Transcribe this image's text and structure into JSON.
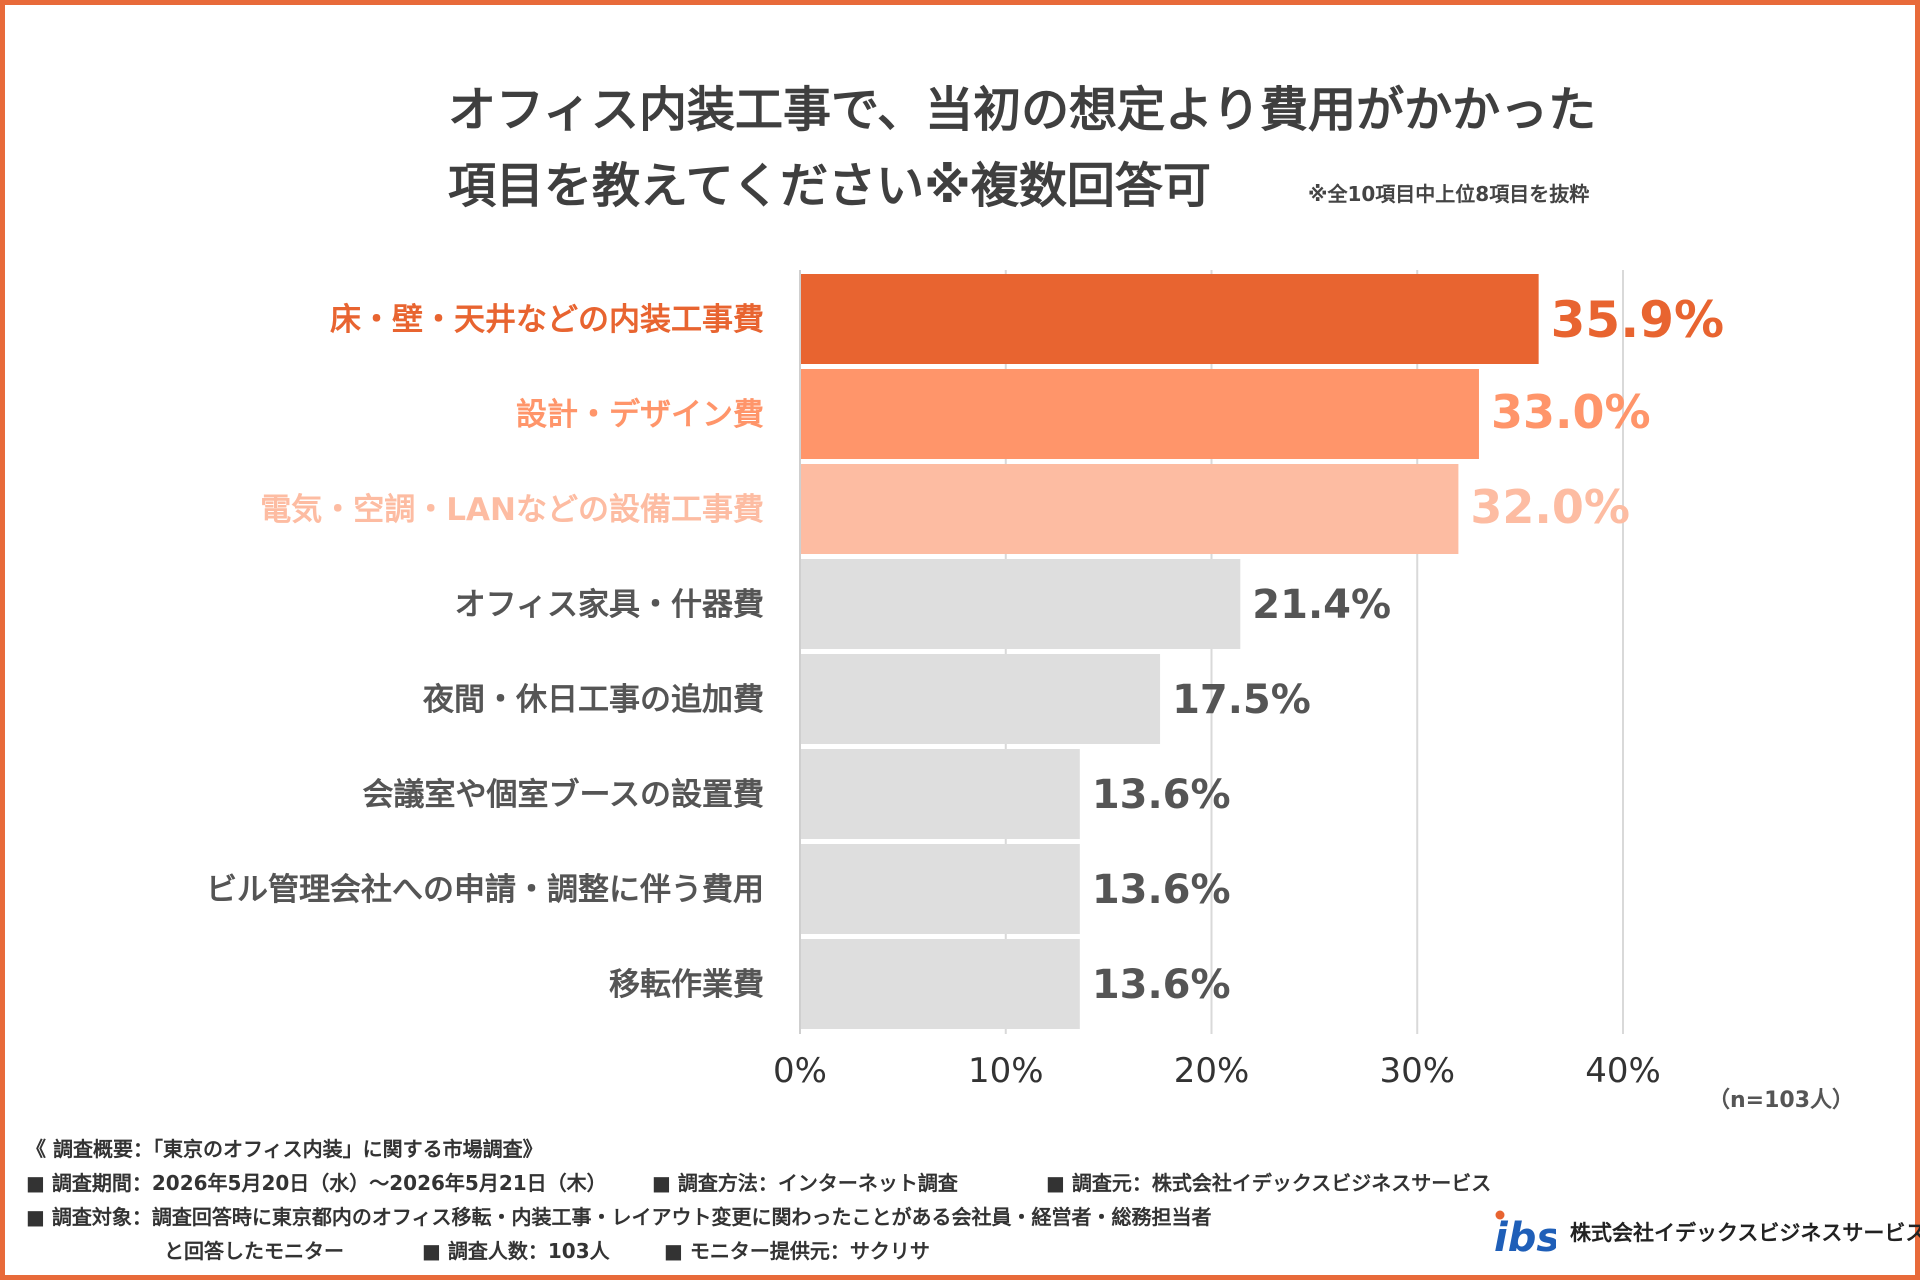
{
  "title": {
    "line1": "オフィス内装工事で、当初の想定より費用がかかった",
    "line2": "項目を教えてください※複数回答可"
  },
  "note": "※全10項目中上位8項目を抜粋",
  "chart_data": {
    "type": "bar",
    "orientation": "horizontal",
    "categories": [
      "床・壁・天井などの内装工事費",
      "設計・デザイン費",
      "電気・空調・LANなどの設備工事費",
      "オフィス家具・什器費",
      "夜間・休日工事の追加費",
      "会議室や個室ブースの設置費",
      "ビル管理会社への申請・調整に伴う費用",
      "移転作業費"
    ],
    "values": [
      35.9,
      33.0,
      32.0,
      21.4,
      17.5,
      13.6,
      13.6,
      13.6
    ],
    "value_labels": [
      "35.9%",
      "33.0%",
      "32.0%",
      "21.4%",
      "17.5%",
      "13.6%",
      "13.6%",
      "13.6%"
    ],
    "colors": [
      "#e86430",
      "#ff956a",
      "#fdbca2",
      "#dedede",
      "#dedede",
      "#dedede",
      "#dedede",
      "#dedede"
    ],
    "label_colors": [
      "#e86430",
      "#ff956a",
      "#fdbca2",
      "#555555",
      "#555555",
      "#555555",
      "#555555",
      "#555555"
    ],
    "xlim": [
      0,
      40
    ],
    "xticks": [
      "0%",
      "10%",
      "20%",
      "30%",
      "40%"
    ],
    "grid": true
  },
  "sample_size": "（n=103人）",
  "survey": {
    "heading": "《 調査概要：「東京のオフィス内装」に関する市場調査》",
    "period": "■ 調査期間：2026年5月20日（水）～2026年5月21日（木）",
    "method": "■ 調査方法：インターネット調査",
    "source": "■ 調査元：株式会社イデックスビジネスサービス",
    "target": "■ 調査対象：調査回答時に東京都内のオフィス移転・内装工事・レイアウト変更に関わったことがある会社員・経営者・総務担当者",
    "target_cont": "と回答したモニター",
    "count": "■ 調査人数：103人",
    "provider": "■ モニター提供元：サクリサ"
  },
  "logo": {
    "mark": "ibs",
    "company": "株式会社イデックスビジネスサービス",
    "blue": "#1f5fb8",
    "orange": "#e86430"
  }
}
